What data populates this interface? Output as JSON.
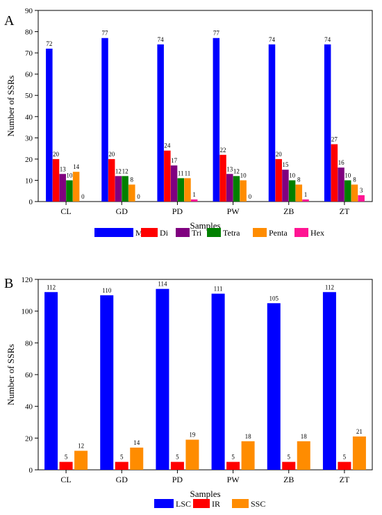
{
  "chart_data": [
    {
      "panel": "A",
      "type": "bar",
      "xlabel": "Samples",
      "ylabel": "Number of SSRs",
      "ylim": [
        0,
        90
      ],
      "yticks": [
        0,
        10,
        20,
        30,
        40,
        50,
        60,
        70,
        80,
        90
      ],
      "categories": [
        "CL",
        "GD",
        "PD",
        "PW",
        "ZB",
        "ZT"
      ],
      "legend_position": "bottom",
      "series": [
        {
          "name": "Mono",
          "color": "#0000ff",
          "values": [
            72,
            77,
            74,
            77,
            74,
            74
          ]
        },
        {
          "name": "Di",
          "color": "#ff0000",
          "values": [
            20,
            20,
            24,
            22,
            20,
            27
          ]
        },
        {
          "name": "Tri",
          "color": "#800080",
          "values": [
            13,
            12,
            17,
            13,
            15,
            16
          ]
        },
        {
          "name": "Tetra",
          "color": "#008000",
          "values": [
            10,
            12,
            11,
            12,
            10,
            10
          ]
        },
        {
          "name": "Penta",
          "color": "#ff8c00",
          "values": [
            14,
            8,
            11,
            10,
            8,
            8
          ]
        },
        {
          "name": "Hex",
          "color": "#ff1493",
          "values": [
            0,
            0,
            1,
            0,
            1,
            3
          ]
        }
      ]
    },
    {
      "panel": "B",
      "type": "bar",
      "xlabel": "Samples",
      "ylabel": "Number of SSRs",
      "ylim": [
        0,
        120
      ],
      "yticks": [
        0,
        20,
        40,
        60,
        80,
        100,
        120
      ],
      "categories": [
        "CL",
        "GD",
        "PD",
        "PW",
        "ZB",
        "ZT"
      ],
      "legend_position": "bottom",
      "series": [
        {
          "name": "LSC",
          "color": "#0000ff",
          "values": [
            112,
            110,
            114,
            111,
            105,
            112
          ]
        },
        {
          "name": "IR",
          "color": "#ff0000",
          "values": [
            5,
            5,
            5,
            5,
            5,
            5
          ]
        },
        {
          "name": "SSC",
          "color": "#ff8c00",
          "values": [
            12,
            14,
            19,
            18,
            18,
            21
          ]
        }
      ]
    }
  ]
}
